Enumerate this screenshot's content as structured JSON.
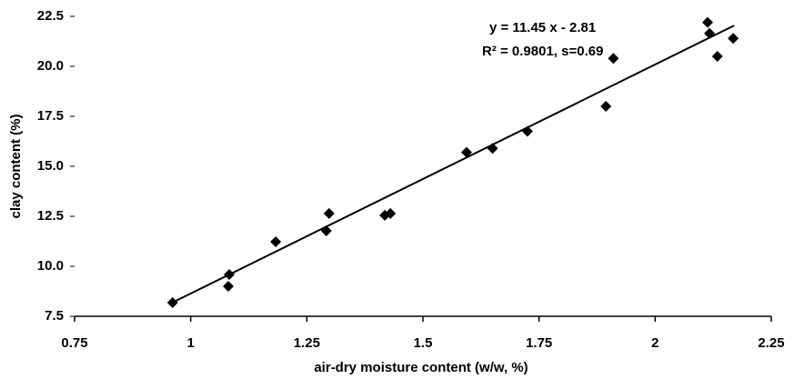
{
  "chart_data": {
    "type": "scatter",
    "x_label": "air-dry moisture content (w/w, %)",
    "y_label": "clay content (%)",
    "annotations": [
      "y = 11.45 x - 2.81",
      "R² = 0.9801, s=0.69"
    ],
    "color": "#000000",
    "x": [
      0.961,
      1.083,
      1.081,
      1.183,
      1.292,
      1.298,
      1.418,
      1.43,
      1.594,
      1.65,
      1.725,
      1.894,
      1.91,
      2.113,
      2.117,
      2.134,
      2.168
    ],
    "values": [
      8.18,
      9.59,
      9.0,
      11.23,
      11.77,
      12.64,
      12.55,
      12.64,
      15.7,
      15.9,
      16.75,
      18.0,
      20.4,
      22.2,
      21.65,
      20.5,
      21.4
    ],
    "fit_line": {
      "x": [
        0.96,
        2.17
      ],
      "y": [
        8.18,
        22.04
      ]
    },
    "xlim": [
      0.75,
      2.25
    ],
    "xticks": [
      0.75,
      1,
      1.25,
      1.5,
      1.75,
      2,
      2.25
    ],
    "ylim": [
      7.5,
      22.5
    ],
    "yticks": [
      7.5,
      {
        "value": 10,
        "label": "10.0"
      },
      12.5,
      {
        "value": 15,
        "label": "15.0"
      },
      17.5,
      {
        "value": 20,
        "label": "20.0"
      },
      22.5
    ]
  }
}
